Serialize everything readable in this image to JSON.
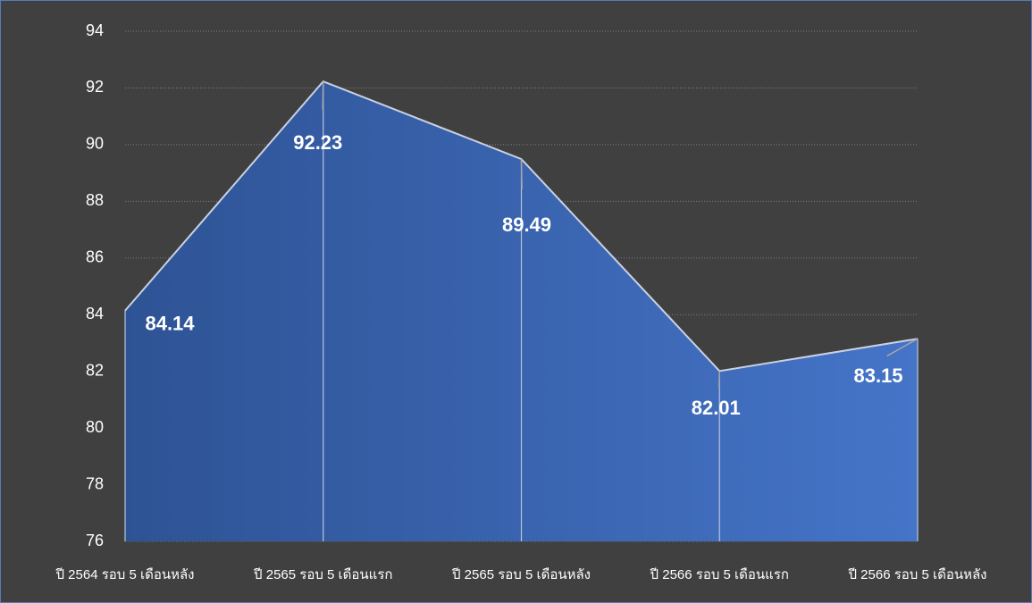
{
  "chart_data": {
    "type": "area",
    "categories": [
      "ปี 2564 รอบ 5 เดือนหลัง",
      "ปี 2565 รอบ 5 เดือนแรก",
      "ปี 2565 รอบ 5 เดือนหลัง",
      "ปี 2566 รอบ 5 เดือนแรก",
      "ปี 2566 รอบ 5 เดือนหลัง"
    ],
    "values": [
      84.14,
      92.23,
      89.49,
      82.01,
      83.15
    ],
    "color": "#4472c4",
    "ylim": [
      76,
      94
    ],
    "yticks": [
      76,
      78,
      80,
      82,
      84,
      86,
      88,
      90,
      92,
      94
    ],
    "grid": true
  }
}
